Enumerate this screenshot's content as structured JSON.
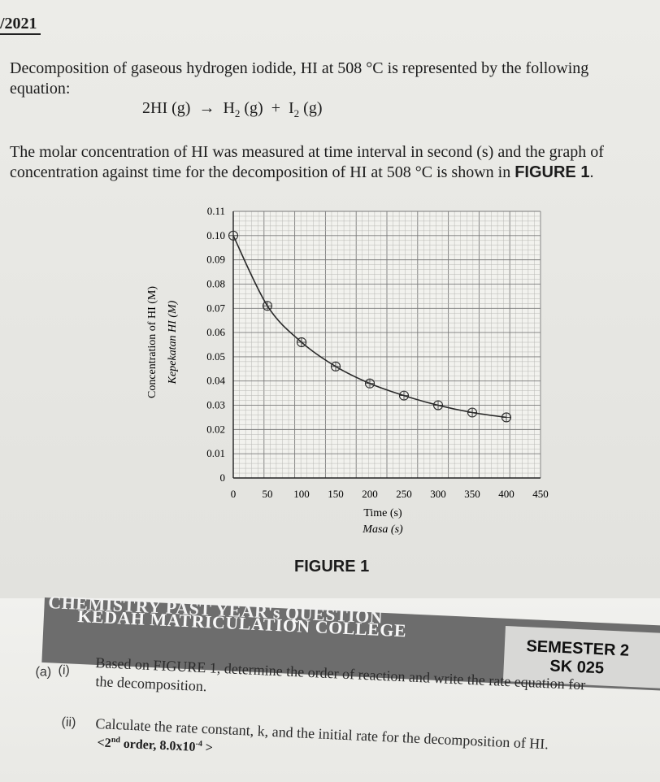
{
  "header": {
    "year": "/2021"
  },
  "intro": {
    "line1": "Decomposition of gaseous hydrogen iodide, HI at 508 °C is represented by the following",
    "line2": "equation:"
  },
  "equation": {
    "reactant": "2HI (g)",
    "arrow": "→",
    "product1": "H",
    "product1_sub": "2",
    "product1_state": " (g)",
    "plus": "+",
    "product2": "I",
    "product2_sub": "2",
    "product2_state": " (g)"
  },
  "description": {
    "line1": "The molar concentration of HI was measured at time interval in second (s) and the graph of",
    "line2_a": "concentration against time for the decomposition of HI at 508 °C is shown in ",
    "line2_b": "FIGURE 1",
    "line2_c": "."
  },
  "chart_data": {
    "type": "line",
    "xlabel": "Time (s)",
    "xlabel_alt": "Masa (s)",
    "ylabel": "Concentration of HI (M)",
    "ylabel_alt": "Kepekatan HI (M)",
    "xlim": [
      0,
      450
    ],
    "ylim": [
      0,
      0.11
    ],
    "x_ticks": [
      "0",
      "50",
      "100",
      "150",
      "200",
      "250",
      "300",
      "350",
      "400",
      "450"
    ],
    "y_ticks": [
      "0",
      "0.01",
      "0.02",
      "0.03",
      "0.04",
      "0.05",
      "0.06",
      "0.07",
      "0.08",
      "0.09",
      "0.10",
      "0.11"
    ],
    "grid": true,
    "x": [
      0,
      50,
      100,
      150,
      200,
      250,
      300,
      350,
      400
    ],
    "y": [
      0.1,
      0.071,
      0.056,
      0.046,
      0.039,
      0.034,
      0.03,
      0.027,
      0.025
    ],
    "curve_color": "#2a2a2a"
  },
  "figure": {
    "label": "FIGURE 1"
  },
  "banner": {
    "line1": "CHEMISTRY PAST YEAR's QUESTION",
    "line2": "KEDAH MATRICULATION COLLEGE",
    "semester": "SEMESTER 2",
    "code": "SK 025"
  },
  "questions": {
    "a_label": "(a)",
    "i_label": "(i)",
    "i_line1": "Based on FIGURE 1, determine the order of reaction and write the rate equation for",
    "i_line2": "the decomposition.",
    "ii_label": "(ii)",
    "ii_line1": "Calculate the rate constant, k, and the initial rate for the decomposition of HI.",
    "hint_a": "<2",
    "hint_sup": "nd",
    "hint_b": " order, 8.0x10",
    "hint_exp": "-4",
    "hint_c": " >"
  }
}
